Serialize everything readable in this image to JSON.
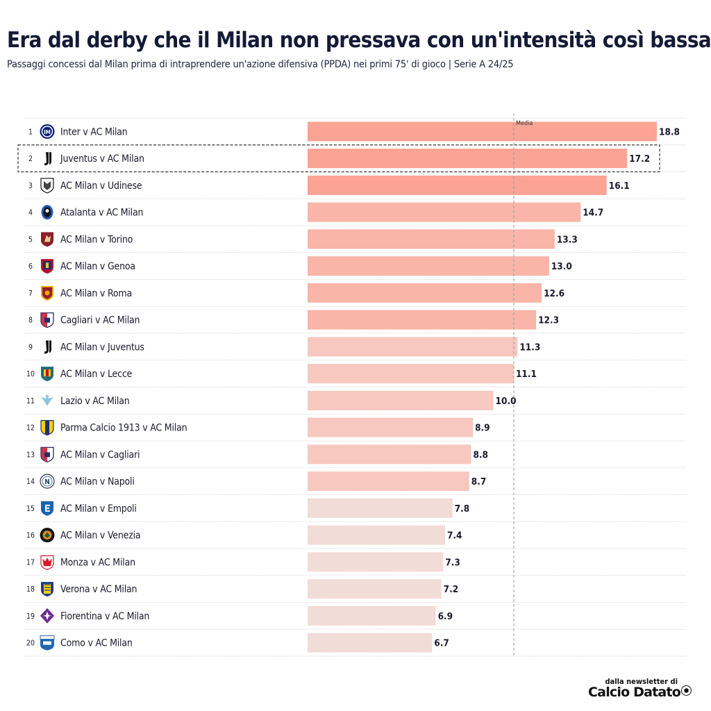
{
  "header": {
    "title": "Era dal derby che il Milan non pressava con un'intensità così bassa",
    "subtitle": "Passaggi concessi dal Milan prima di intraprendere un'azione difensiva (PPDA) nei primi 75' di gioco | Serie A 24/25"
  },
  "footer": {
    "label": "dalla newsletter di",
    "brand": "Calcio Datato"
  },
  "colors": {
    "tier1": "#fba394",
    "tier2": "#f9b5a8",
    "tier3": "#f7c8bf",
    "tier4": "#f2dcd7",
    "highlight_border": "#333333",
    "avg_line": "#999999",
    "grid": "#cccccc"
  },
  "chart_data": {
    "type": "bar",
    "orientation": "horizontal",
    "title": "Era dal derby che il Milan non pressava con un'intensità così bassa",
    "subtitle": "Passaggi concessi dal Milan prima di intraprendere un'azione difensiva (PPDA) nei primi 75' di gioco | Serie A 24/25",
    "xlabel": "",
    "ylabel": "",
    "reference_line": {
      "label": "Media",
      "value": 11.1
    },
    "highlighted_rank": 2,
    "categories": [
      "Inter v AC Milan",
      "Juventus v AC Milan",
      "AC Milan v Udinese",
      "Atalanta v AC Milan",
      "AC Milan v Torino",
      "AC Milan v Genoa",
      "AC Milan v Roma",
      "Cagliari v AC Milan",
      "AC Milan v Juventus",
      "AC Milan v Lecce",
      "Lazio v AC Milan",
      "Parma Calcio 1913 v AC Milan",
      "AC Milan v Cagliari",
      "AC Milan v Napoli",
      "AC Milan v Empoli",
      "AC Milan v Venezia",
      "Monza v AC Milan",
      "Verona v AC Milan",
      "Fiorentina v AC Milan",
      "Como v AC Milan"
    ],
    "values": [
      18.8,
      17.2,
      16.1,
      14.7,
      13.3,
      13.0,
      12.6,
      12.3,
      11.3,
      11.1,
      10.0,
      8.9,
      8.8,
      8.7,
      7.8,
      7.4,
      7.3,
      7.2,
      6.9,
      6.7
    ],
    "value_labels": [
      "18.8",
      "17.2",
      "16.1",
      "14.7",
      "13.3",
      "13.0",
      "12.6",
      "12.3",
      "11.3",
      "11.1",
      "10.0",
      "8.9",
      "8.8",
      "8.7",
      "7.8",
      "7.4",
      "7.3",
      "7.2",
      "6.9",
      "6.7"
    ],
    "ranks": [
      "1",
      "2",
      "3",
      "4",
      "5",
      "6",
      "7",
      "8",
      "9",
      "10",
      "11",
      "12",
      "13",
      "14",
      "15",
      "16",
      "17",
      "18",
      "19",
      "20"
    ],
    "opponent_icons": [
      "inter-icon",
      "juventus-icon",
      "udinese-icon",
      "atalanta-icon",
      "torino-icon",
      "genoa-icon",
      "roma-icon",
      "cagliari-icon",
      "juventus-icon",
      "lecce-icon",
      "lazio-icon",
      "parma-icon",
      "cagliari-icon",
      "napoli-icon",
      "empoli-icon",
      "venezia-icon",
      "monza-icon",
      "verona-icon",
      "fiorentina-icon",
      "como-icon"
    ],
    "color_tiers": [
      1,
      1,
      1,
      2,
      2,
      2,
      2,
      2,
      3,
      3,
      3,
      3,
      3,
      3,
      4,
      4,
      4,
      4,
      4,
      4
    ],
    "xlim": [
      0,
      19.5
    ]
  }
}
